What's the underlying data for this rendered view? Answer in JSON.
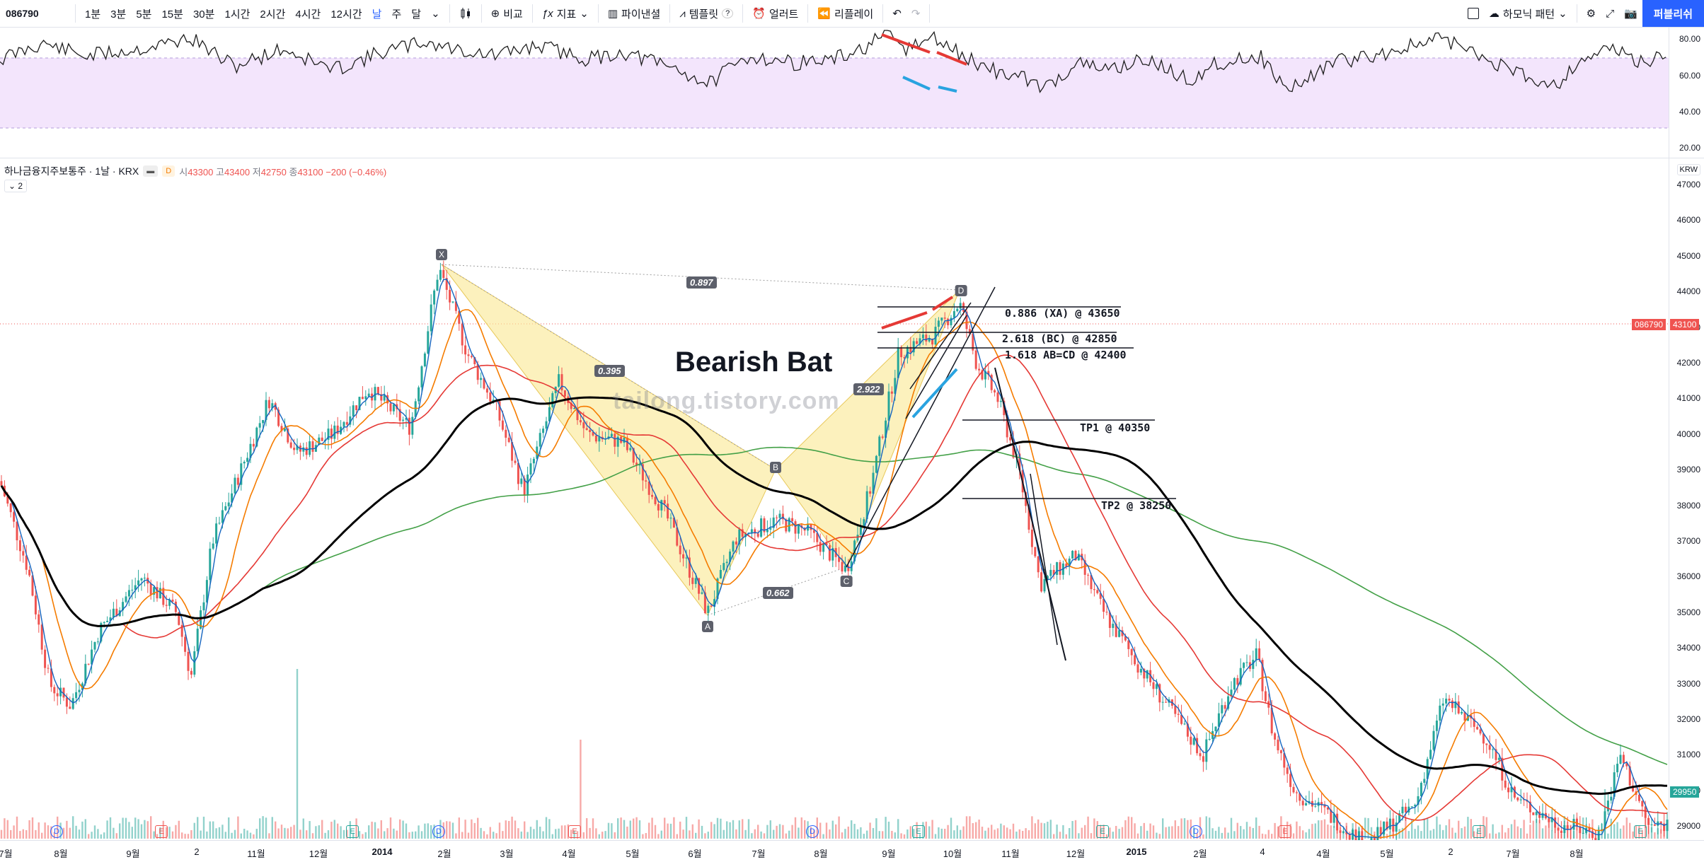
{
  "toolbar": {
    "symbol": "086790",
    "intervals": [
      "1분",
      "3분",
      "5분",
      "15분",
      "30분",
      "1시간",
      "2시간",
      "4시간",
      "12시간",
      "날",
      "주",
      "달"
    ],
    "active_interval": "날",
    "compare_label": "비교",
    "indicators_label": "지표",
    "financials_label": "파이낸셜",
    "templates_label": "템플릿",
    "alert_label": "얼러트",
    "replay_label": "리플레이",
    "harmonic_label": "하모닉 패턴",
    "publish_label": "퍼블리쉬"
  },
  "legend": {
    "name": "하나금융지주보통주 · 1날 · KRX",
    "open_label": "시",
    "open": "43300",
    "high_label": "고",
    "high": "43400",
    "low_label": "저",
    "low": "42750",
    "close_label": "종",
    "close": "43100",
    "change": "−200 (−0.46%)",
    "collapse": "2"
  },
  "currency": "KRW",
  "rsi_axis": [
    "80.00",
    "60.00",
    "40.00",
    "20.00"
  ],
  "price_axis": [
    "47000",
    "46000",
    "45000",
    "44000",
    "43000",
    "42000",
    "41000",
    "40000",
    "39000",
    "38000",
    "37000",
    "36000",
    "35000",
    "34000",
    "33000",
    "32000",
    "31000",
    "30000",
    "29000"
  ],
  "last_price": {
    "symbol": "086790",
    "value": "43100"
  },
  "ma_price": "29950",
  "x_axis": [
    "7월",
    "8월",
    "9월",
    "2",
    "11월",
    "12월",
    "2014",
    "2월",
    "3월",
    "4월",
    "5월",
    "6월",
    "7월",
    "8월",
    "9월",
    "10월",
    "11월",
    "12월",
    "2015",
    "2월",
    "4",
    "4월",
    "5월",
    "2",
    "7월",
    "8월"
  ],
  "pattern": {
    "title": "Bearish Bat",
    "watermark": "tailong.tistory.com",
    "points": [
      "X",
      "A",
      "B",
      "C",
      "D"
    ],
    "ratios": [
      "0.897",
      "0.395",
      "0.662",
      "2.922"
    ],
    "levels": [
      "0.886 (XA) @ 43650",
      "2.618 (BC) @ 42850",
      "1.618 AB=CD @ 42400",
      "TP1 @ 40350",
      "TP2 @ 38250"
    ]
  },
  "colors": {
    "up": "#26a69a",
    "down": "#ef5350",
    "accent": "#2962ff",
    "ma_fast": "#f57c00",
    "ma_mid": "#e53935",
    "ma_slow": "#43a047",
    "ma_long": "#000000",
    "pattern_fill": "#fbe99a",
    "rsi_band": "#f3e5fc",
    "rsi_line": "#1e1e1e"
  }
}
